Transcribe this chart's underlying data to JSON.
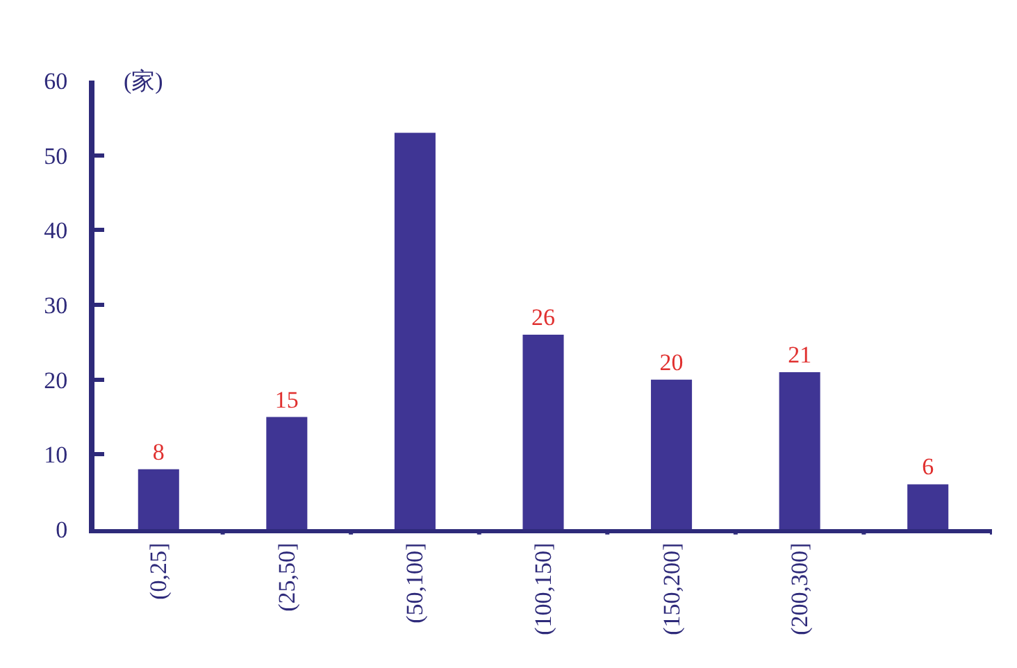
{
  "chart_data": {
    "type": "bar",
    "ylabel": "(家)",
    "categories": [
      "(0,25]",
      "(25,50]",
      "(50,100]",
      "(100,150]",
      "(150,200]",
      "(200,300]",
      null
    ],
    "values": [
      8,
      15,
      53,
      26,
      20,
      21,
      6
    ],
    "value_labels": [
      "8",
      "15",
      null,
      "26",
      "20",
      "21",
      "6"
    ],
    "color": "#3f3594",
    "ylim": [
      0,
      60
    ],
    "yticks": [
      0,
      10,
      20,
      30,
      40,
      50,
      60
    ]
  }
}
